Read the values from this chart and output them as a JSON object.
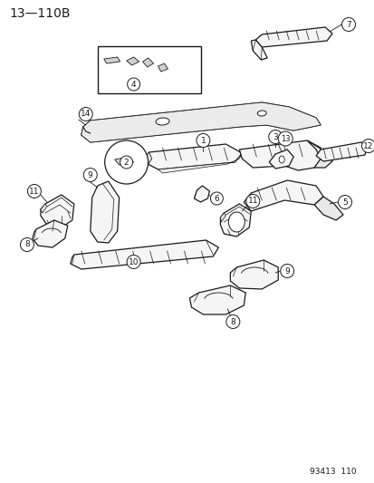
{
  "title": "13—110B",
  "footer": "93413  110",
  "bg_color": "#ffffff",
  "title_fontsize": 10,
  "footer_fontsize": 6.5,
  "line_color": "#1a1a1a",
  "fig_width": 4.14,
  "fig_height": 5.33,
  "dpi": 100,
  "part_fill": "#f5f5f5",
  "part_lw": 0.9
}
